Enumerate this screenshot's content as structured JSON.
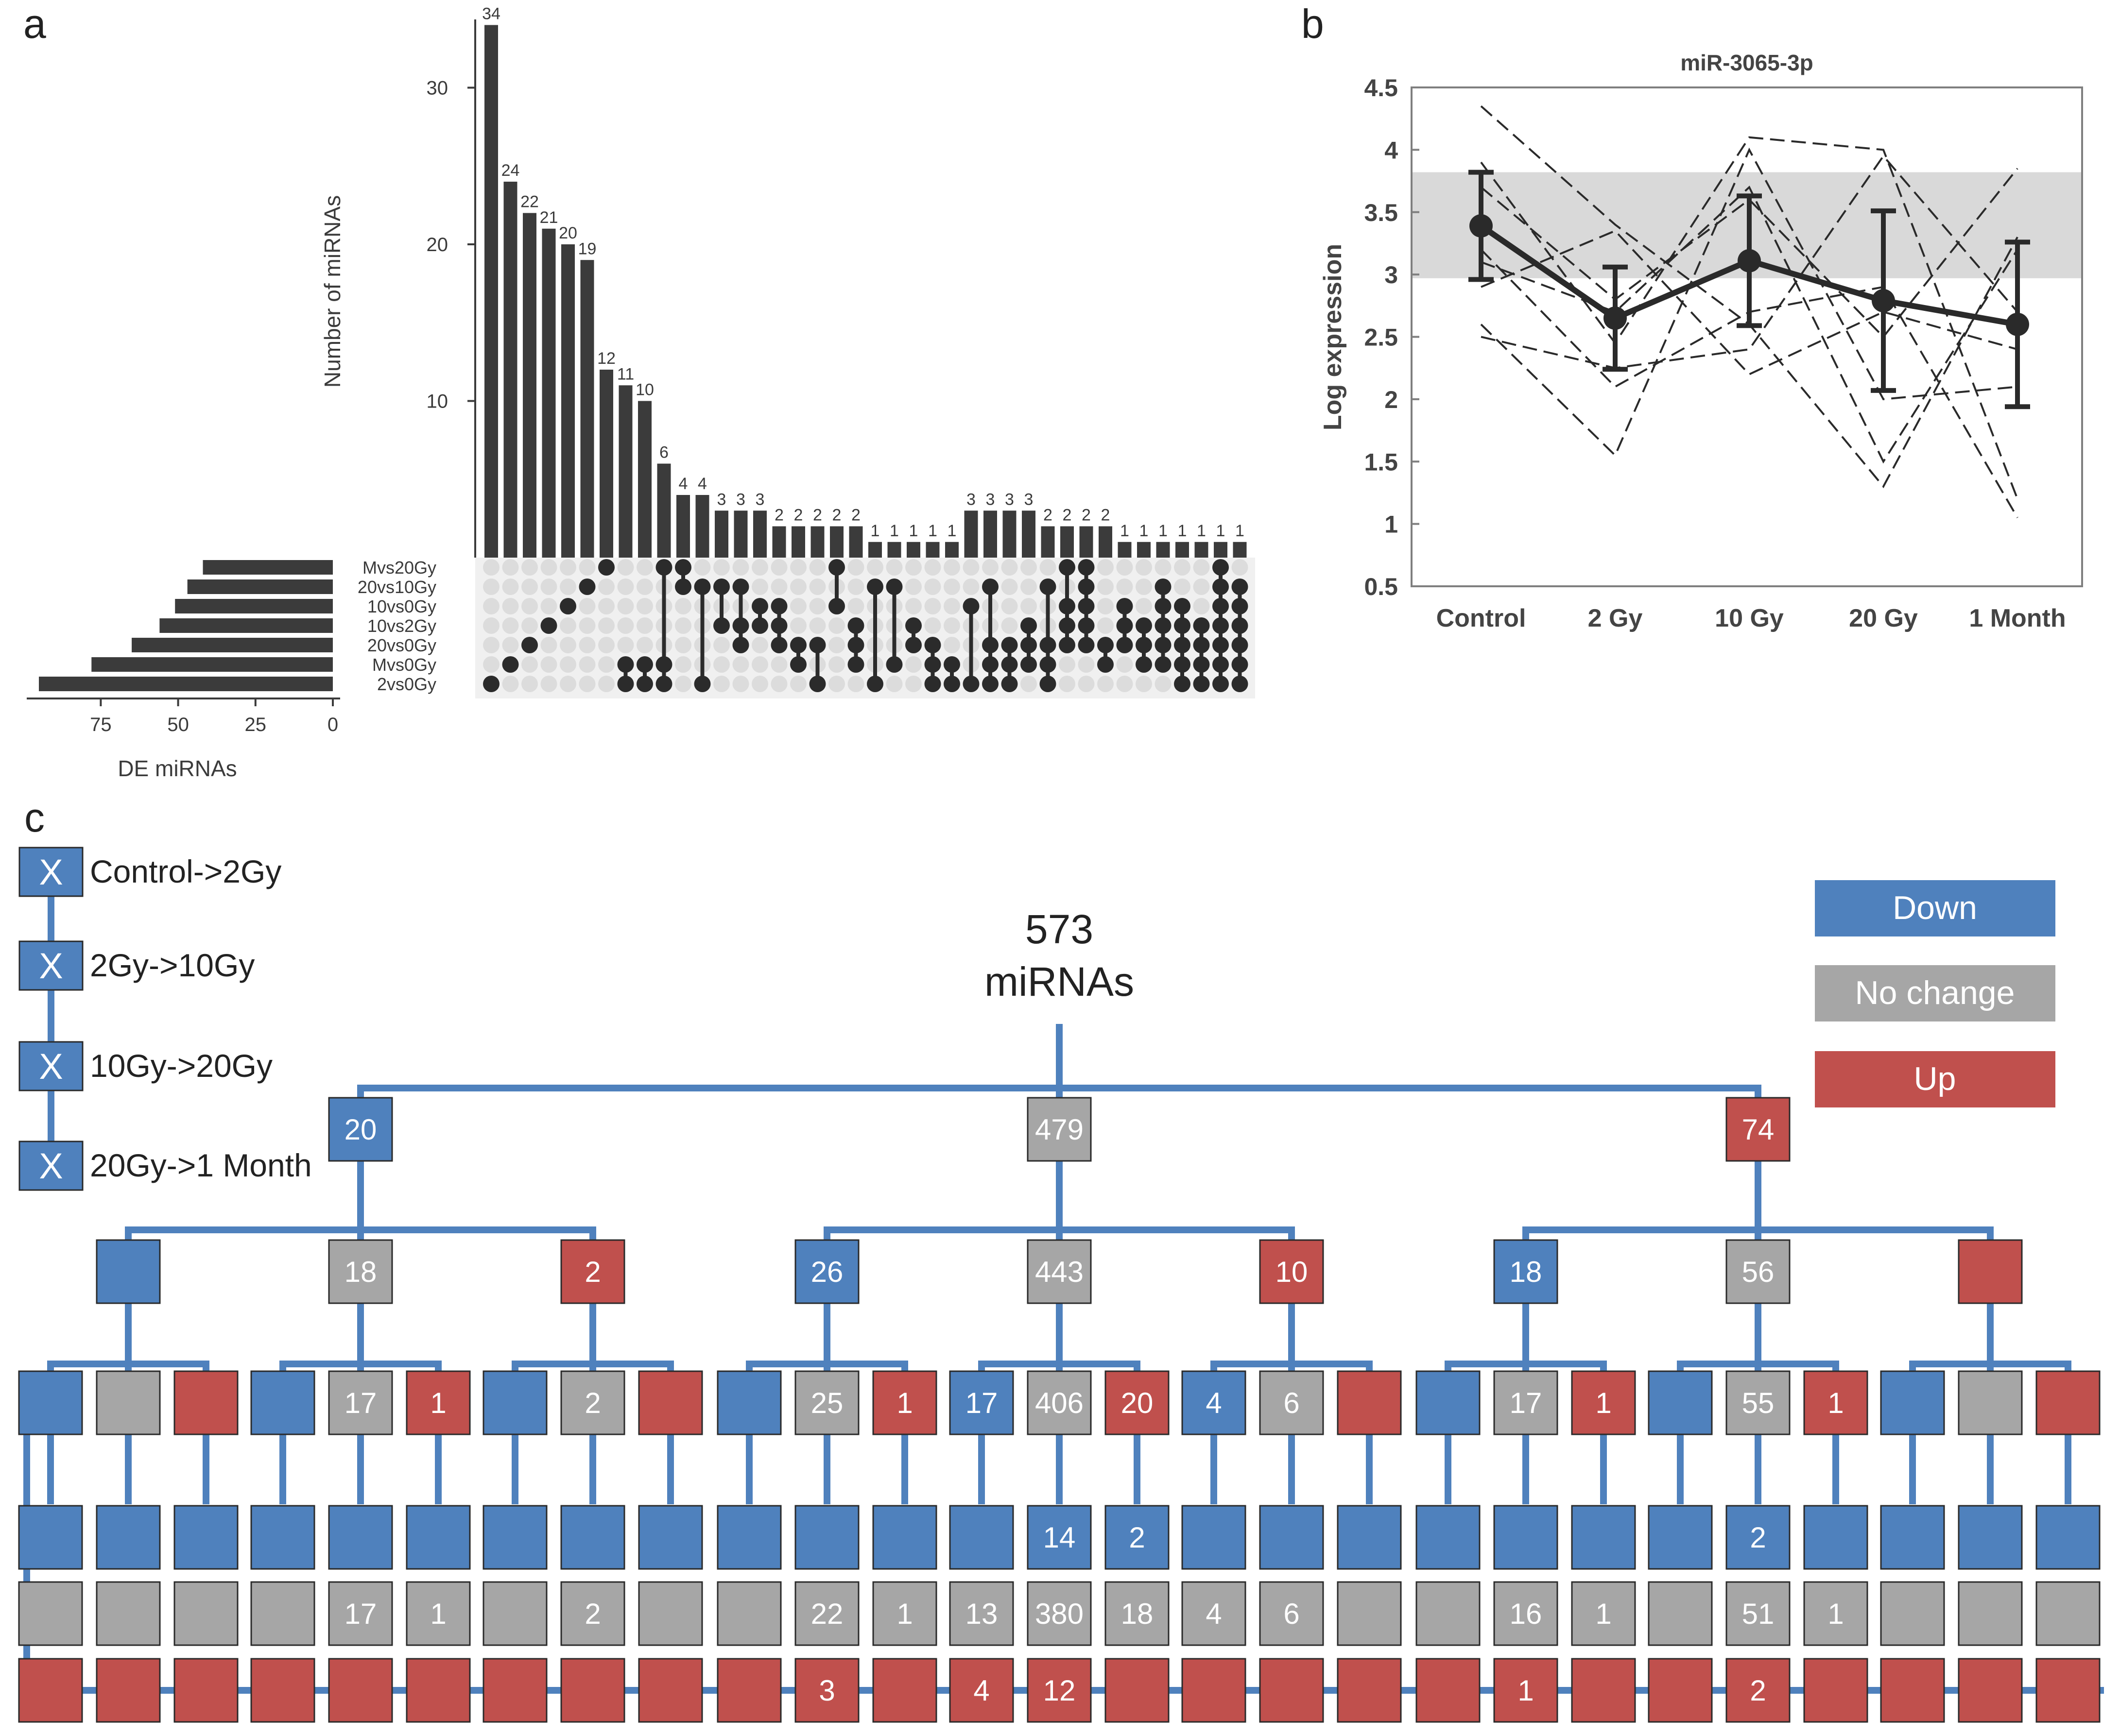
{
  "panel_labels": {
    "a": "a",
    "b": "b",
    "c": "c"
  },
  "chart_data": [
    {
      "id": "upset-intersections",
      "type": "bar",
      "title": "",
      "ylabel": "Number of miRNAs",
      "ylim": [
        0,
        35
      ],
      "yticks": [
        10,
        20,
        30
      ],
      "values": [
        34,
        24,
        22,
        21,
        20,
        19,
        12,
        11,
        10,
        6,
        4,
        4,
        3,
        3,
        3,
        2,
        2,
        2,
        2,
        2,
        1,
        1,
        1,
        1,
        1,
        3,
        3,
        3,
        3,
        2,
        2,
        2,
        2,
        1,
        1,
        1,
        1,
        1,
        1,
        1
      ],
      "sets": [
        "Mvs20Gy",
        "20vs10Gy",
        "10vs0Gy",
        "10vs2Gy",
        "20vs0Gy",
        "Mvs0Gy",
        "2vs0Gy"
      ],
      "memberships": [
        [
          6
        ],
        [
          5
        ],
        [
          4
        ],
        [
          3
        ],
        [
          2
        ],
        [
          1
        ],
        [
          0
        ],
        [
          5,
          6
        ],
        [
          5,
          6
        ],
        [
          0,
          5,
          6
        ],
        [
          0,
          1
        ],
        [
          1,
          6
        ],
        [
          1,
          3
        ],
        [
          1,
          3,
          4
        ],
        [
          2,
          3
        ],
        [
          2,
          3,
          4
        ],
        [
          4,
          5
        ],
        [
          4,
          6
        ],
        [
          0,
          2
        ],
        [
          3,
          4,
          5
        ],
        [
          1,
          6
        ],
        [
          1,
          5
        ],
        [
          3,
          4
        ],
        [
          4,
          5,
          6
        ],
        [
          5,
          6
        ],
        [
          2,
          6
        ],
        [
          1,
          4,
          5,
          6
        ],
        [
          4,
          5,
          6
        ],
        [
          3,
          4,
          5
        ],
        [
          1,
          4,
          5,
          6
        ],
        [
          0,
          2,
          3,
          4
        ],
        [
          0,
          1,
          2,
          3,
          4
        ],
        [
          4,
          5
        ],
        [
          2,
          3,
          4
        ],
        [
          3,
          4,
          5
        ],
        [
          1,
          2,
          3,
          4,
          5
        ],
        [
          2,
          3,
          4,
          5,
          6
        ],
        [
          3,
          4,
          5,
          6
        ],
        [
          0,
          1,
          2,
          3,
          4,
          5,
          6
        ],
        [
          1,
          2,
          3,
          4,
          5,
          6
        ]
      ]
    },
    {
      "id": "set-sizes",
      "type": "bar",
      "orientation": "horizontal",
      "xlabel": "DE miRNAs",
      "xlim": [
        0,
        95
      ],
      "xticks": [
        75,
        50,
        25,
        0
      ],
      "categories": [
        "Mvs20Gy",
        "20vs10Gy",
        "10vs0Gy",
        "10vs2Gy",
        "20vs0Gy",
        "Mvs0Gy",
        "2vs0Gy"
      ],
      "values": [
        42,
        47,
        51,
        56,
        65,
        78,
        95
      ]
    },
    {
      "id": "mir-3065-3p",
      "type": "line",
      "title": "miR-3065-3p",
      "xlabel": "",
      "ylabel": "Log expression",
      "categories": [
        "Control",
        "2 Gy",
        "10 Gy",
        "20 Gy",
        "1 Month"
      ],
      "ylim": [
        0.5,
        4.5
      ],
      "yticks": [
        0.5,
        1,
        1.5,
        2,
        2.5,
        3,
        3.5,
        4,
        4.5
      ],
      "grey_band": [
        2.97,
        3.82
      ],
      "mean": [
        3.39,
        2.65,
        3.11,
        2.79,
        2.6
      ],
      "error": [
        0.43,
        0.41,
        0.52,
        0.72,
        0.66
      ],
      "samples": [
        [
          4.35,
          3.4,
          2.6,
          1.3,
          3.3
        ],
        [
          3.9,
          2.45,
          4.1,
          4.0,
          1.2
        ],
        [
          3.7,
          2.8,
          3.6,
          2.5,
          3.85
        ],
        [
          3.2,
          2.1,
          2.7,
          2.9,
          1.05
        ],
        [
          2.6,
          1.55,
          4.0,
          2.0,
          2.1
        ],
        [
          2.5,
          2.25,
          2.4,
          3.95,
          2.7
        ],
        [
          3.1,
          2.7,
          3.7,
          1.5,
          3.2
        ],
        [
          2.9,
          3.35,
          2.2,
          2.7,
          2.4
        ]
      ]
    },
    {
      "id": "transition-tree",
      "type": "tree",
      "root_label": "573",
      "root_unit": "miRNAs",
      "legend": {
        "down": "Down",
        "none": "No change",
        "up": "Up"
      },
      "colors": {
        "down": "#4f81bd",
        "none": "#a6a6a6",
        "up": "#c0504d"
      },
      "steps": [
        {
          "mark": "X",
          "label": "Control->2Gy"
        },
        {
          "mark": "X",
          "label": "2Gy->10Gy"
        },
        {
          "mark": "X",
          "label": "10Gy->20Gy"
        },
        {
          "mark": "X",
          "label": "20Gy->1 Month"
        }
      ],
      "level1": [
        "20",
        "479",
        "74"
      ],
      "level2": [
        "",
        "18",
        "2",
        "26",
        "443",
        "10",
        "18",
        "56",
        ""
      ],
      "level3": [
        "",
        "",
        "",
        "",
        "17",
        "1",
        "",
        "2",
        "",
        "",
        "25",
        "1",
        "17",
        "406",
        "20",
        "4",
        "6",
        "",
        "",
        "17",
        "1",
        "",
        "55",
        "1",
        "",
        "",
        ""
      ],
      "level4": {
        "down": [
          "",
          "",
          "",
          "",
          "",
          "",
          "",
          "",
          "",
          "",
          "",
          "",
          "",
          "14",
          "2",
          "",
          "",
          "",
          "",
          "",
          "",
          "",
          "2",
          "",
          "",
          "",
          ""
        ],
        "none": [
          "",
          "",
          "",
          "",
          "17",
          "1",
          "",
          "2",
          "",
          "",
          "22",
          "1",
          "13",
          "380",
          "18",
          "4",
          "6",
          "",
          "",
          "16",
          "1",
          "",
          "51",
          "1",
          "",
          "",
          ""
        ],
        "up": [
          "",
          "",
          "",
          "",
          "",
          "",
          "",
          "",
          "",
          "",
          "3",
          "",
          "4",
          "12",
          "",
          "",
          "",
          "",
          "",
          "1",
          "",
          "",
          "2",
          "",
          "",
          "",
          ""
        ]
      }
    }
  ]
}
